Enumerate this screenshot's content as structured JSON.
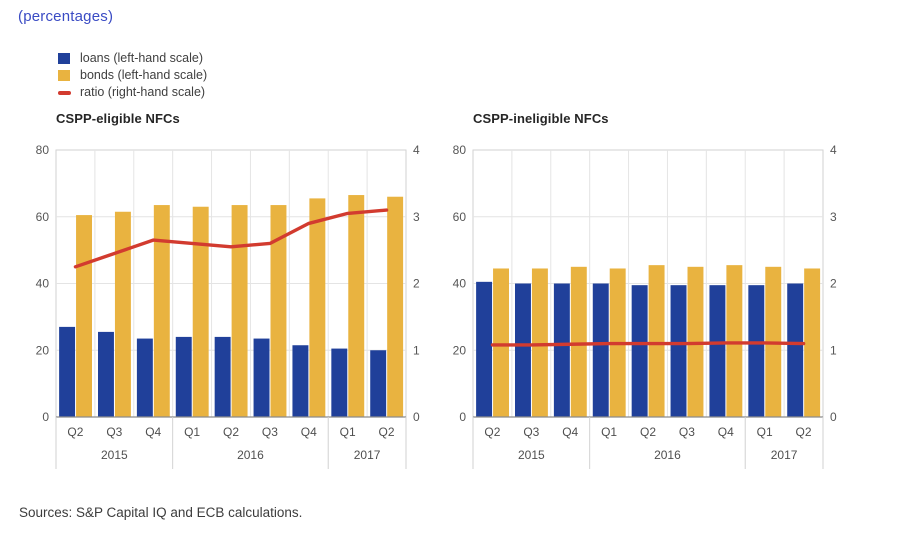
{
  "subtitle": "(percentages)",
  "sources": "Sources: S&P Capital IQ and ECB calculations.",
  "legend": {
    "items": [
      {
        "label": "loans (left-hand scale)",
        "color": "#20409a",
        "shape": "square"
      },
      {
        "label": "bonds (left-hand scale)",
        "color": "#e9b340",
        "shape": "square"
      },
      {
        "label": "ratio (right-hand scale)",
        "color": "#d23b2f",
        "shape": "line"
      }
    ]
  },
  "style": {
    "subtitle_color": "#3a4bc4",
    "grid": "#e4e4e4",
    "border": "#d2d2d2",
    "axis": "#8c8c8c",
    "tick_text": "#565656",
    "category_text": "#4f4f4f"
  },
  "chart_data": [
    {
      "type": "bar",
      "title": "CSPP-eligible NFCs",
      "categories": [
        "Q2",
        "Q3",
        "Q4",
        "Q1",
        "Q2",
        "Q3",
        "Q4",
        "Q1",
        "Q2"
      ],
      "year_groups": [
        {
          "label": "2015",
          "span": 3
        },
        {
          "label": "2016",
          "span": 4
        },
        {
          "label": "2017",
          "span": 2
        }
      ],
      "left_axis": {
        "ticks": [
          0,
          20,
          40,
          60,
          80
        ],
        "max": 80
      },
      "right_axis": {
        "ticks": [
          0,
          1,
          2,
          3,
          4
        ],
        "max": 4
      },
      "grid": true,
      "legend_position": "top-left",
      "series": [
        {
          "name": "loans (left-hand scale)",
          "type": "bar",
          "axis": "left",
          "color": "#20409a",
          "values": [
            27,
            25.5,
            23.5,
            24,
            24,
            23.5,
            21.5,
            20.5,
            20
          ]
        },
        {
          "name": "bonds (left-hand scale)",
          "type": "bar",
          "axis": "left",
          "color": "#e9b340",
          "values": [
            60.5,
            61.5,
            63.5,
            63,
            63.5,
            63.5,
            65.5,
            66.5,
            66
          ]
        },
        {
          "name": "ratio (right-hand scale)",
          "type": "line",
          "axis": "right",
          "color": "#d23b2f",
          "values": [
            2.25,
            2.45,
            2.65,
            2.6,
            2.55,
            2.6,
            2.9,
            3.05,
            3.1
          ]
        }
      ]
    },
    {
      "type": "bar",
      "title": "CSPP-ineligible NFCs",
      "categories": [
        "Q2",
        "Q3",
        "Q4",
        "Q1",
        "Q2",
        "Q3",
        "Q4",
        "Q1",
        "Q2"
      ],
      "year_groups": [
        {
          "label": "2015",
          "span": 3
        },
        {
          "label": "2016",
          "span": 4
        },
        {
          "label": "2017",
          "span": 2
        }
      ],
      "left_axis": {
        "ticks": [
          0,
          20,
          40,
          60,
          80
        ],
        "max": 80
      },
      "right_axis": {
        "ticks": [
          0,
          1,
          2,
          3,
          4
        ],
        "max": 4
      },
      "grid": true,
      "legend_position": "none",
      "series": [
        {
          "name": "loans (left-hand scale)",
          "type": "bar",
          "axis": "left",
          "color": "#20409a",
          "values": [
            40.5,
            40,
            40,
            40,
            39.5,
            39.5,
            39.5,
            39.5,
            40
          ]
        },
        {
          "name": "bonds (left-hand scale)",
          "type": "bar",
          "axis": "left",
          "color": "#e9b340",
          "values": [
            44.5,
            44.5,
            45,
            44.5,
            45.5,
            45,
            45.5,
            45,
            44.5
          ]
        },
        {
          "name": "ratio (right-hand scale)",
          "type": "line",
          "axis": "right",
          "color": "#d23b2f",
          "values": [
            1.08,
            1.08,
            1.09,
            1.1,
            1.1,
            1.1,
            1.11,
            1.11,
            1.1
          ]
        }
      ]
    }
  ]
}
